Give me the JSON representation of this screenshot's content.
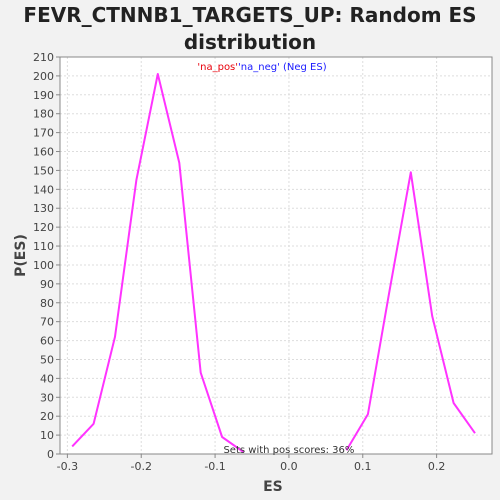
{
  "chart_data": {
    "type": "line",
    "title_lines": [
      "FEVR_CTNNB1_TARGETS_UP: Random ES",
      "distribution"
    ],
    "xlabel": "ES",
    "ylabel": "P(ES)",
    "xlim": [
      -0.31,
      0.275
    ],
    "ylim": [
      0,
      210
    ],
    "x_ticks": [
      -0.3,
      -0.2,
      -0.1,
      0.0,
      0.1,
      0.2
    ],
    "x_tick_labels": [
      "-0.3",
      "-0.2",
      "-0.1",
      "0.0",
      "0.1",
      "0.2"
    ],
    "y_ticks": [
      0,
      10,
      20,
      30,
      40,
      50,
      60,
      70,
      80,
      90,
      100,
      110,
      120,
      130,
      140,
      150,
      160,
      170,
      180,
      190,
      200,
      210
    ],
    "grid": true,
    "legend": {
      "placement": "top-center",
      "parts": [
        {
          "text": "'na_pos'",
          "color": "#e8000b"
        },
        {
          "text": "'na_neg' (Neg ES)",
          "color": "#1a1aff"
        }
      ]
    },
    "series": [
      {
        "name": "'na_neg' (Neg ES)",
        "color": "#ff33ff",
        "x": [
          -0.2935,
          -0.2645,
          -0.2355,
          -0.2065,
          -0.1775,
          -0.1485,
          -0.1195,
          -0.0905,
          -0.0615
        ],
        "y": [
          4,
          16,
          62,
          145,
          201,
          154,
          43,
          9,
          1
        ]
      },
      {
        "name": "'na_pos'",
        "color": "#ff33ff",
        "x": [
          0.078,
          0.107,
          0.136,
          0.165,
          0.194,
          0.223,
          0.252
        ],
        "y": [
          2,
          21,
          86,
          149,
          73,
          27,
          11
        ]
      }
    ],
    "annotations": [
      {
        "text": "Sets with pos scores: 36%"
      }
    ]
  }
}
